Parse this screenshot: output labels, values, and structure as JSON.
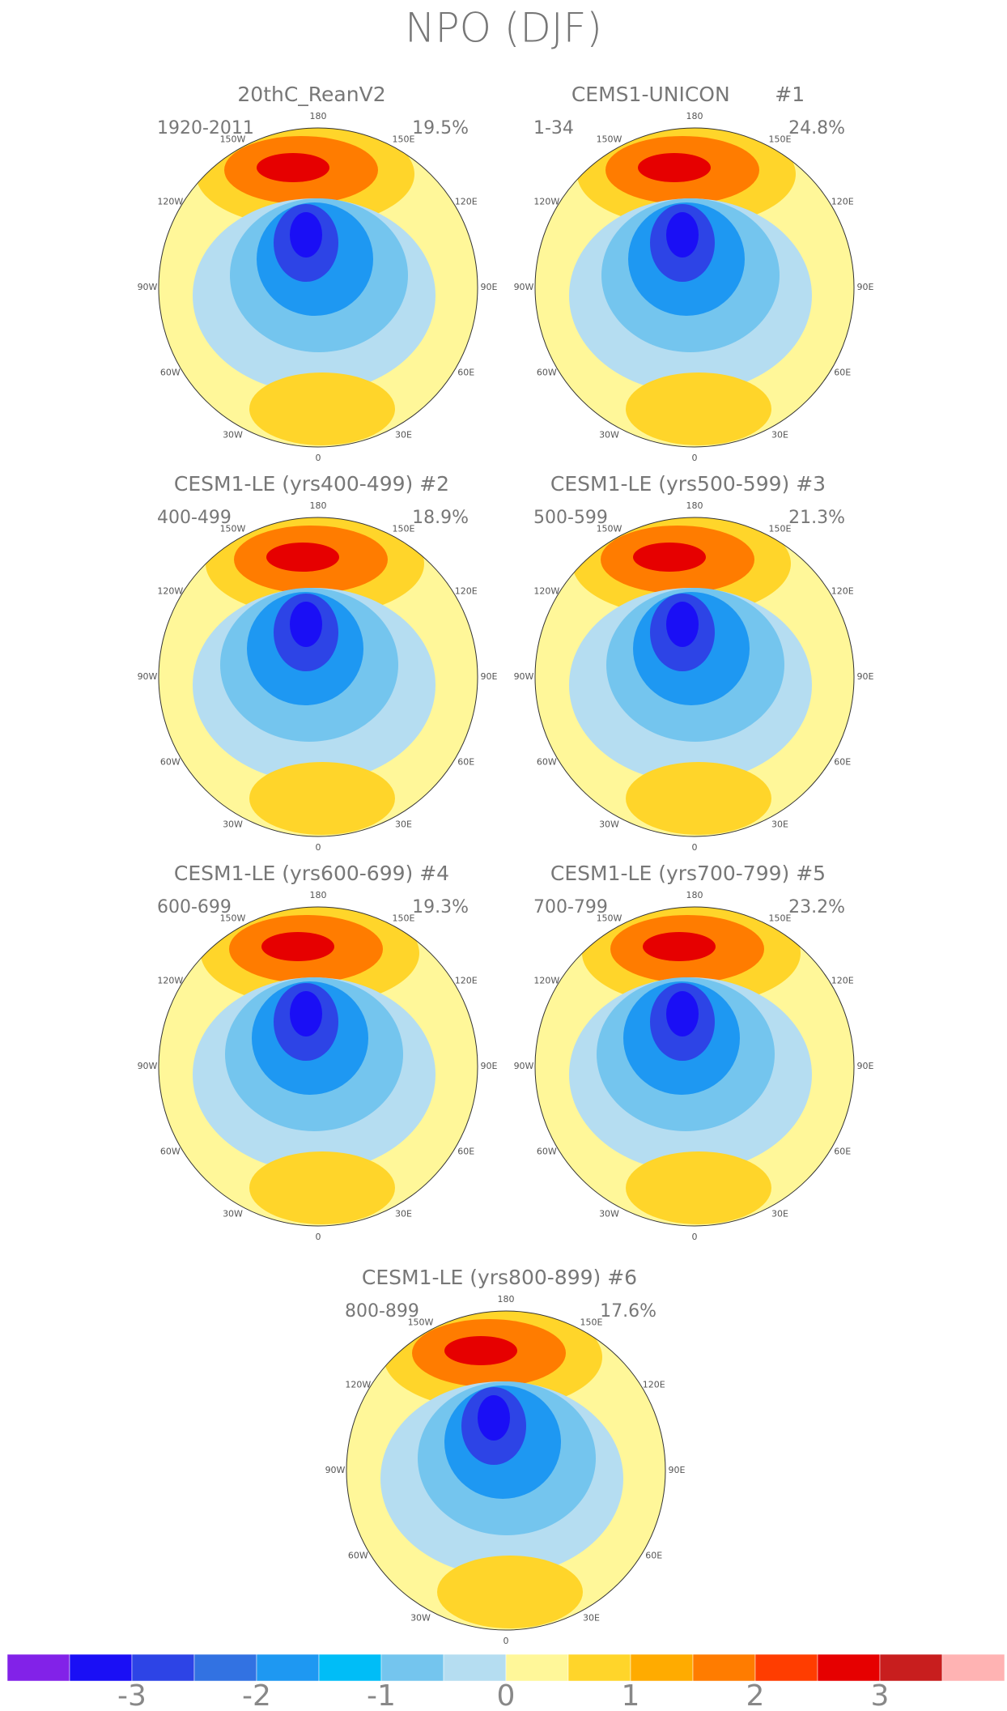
{
  "title": "NPO (DJF)",
  "lon_labels": [
    "180",
    "150E",
    "120E",
    "90E",
    "60E",
    "30E",
    "0",
    "30W",
    "60W",
    "90W",
    "120W",
    "150W"
  ],
  "panels": [
    {
      "title": "20thC_ReanV2",
      "period": "1920-2011",
      "variance": "19.5%"
    },
    {
      "title": "CEMS1-UNICON       #1",
      "period": "1-34",
      "variance": "24.8%"
    },
    {
      "title": "CESM1-LE (yrs400-499) #2",
      "period": "400-499",
      "variance": "18.9%"
    },
    {
      "title": "CESM1-LE (yrs500-599) #3",
      "period": "500-599",
      "variance": "21.3%"
    },
    {
      "title": "CESM1-LE (yrs600-699) #4",
      "period": "600-699",
      "variance": "19.3%"
    },
    {
      "title": "CESM1-LE (yrs700-799) #5",
      "period": "700-799",
      "variance": "23.2%"
    },
    {
      "title": "CESM1-LE (yrs800-899) #6",
      "period": "800-899",
      "variance": "17.6%"
    }
  ],
  "colorbar": {
    "colors": [
      "#8222e8",
      "#1a0ff5",
      "#2d44e6",
      "#3272e2",
      "#1e98f2",
      "#00bdf7",
      "#74c5ee",
      "#b5ddf1",
      "#fff799",
      "#ffd52a",
      "#ffab00",
      "#ff7c00",
      "#ff3d00",
      "#e60000",
      "#c81e1e",
      "#ffb3b3"
    ],
    "lim": [
      -4,
      4
    ],
    "ticks": [
      -3,
      -2,
      -1,
      0,
      1,
      2,
      3
    ]
  }
}
